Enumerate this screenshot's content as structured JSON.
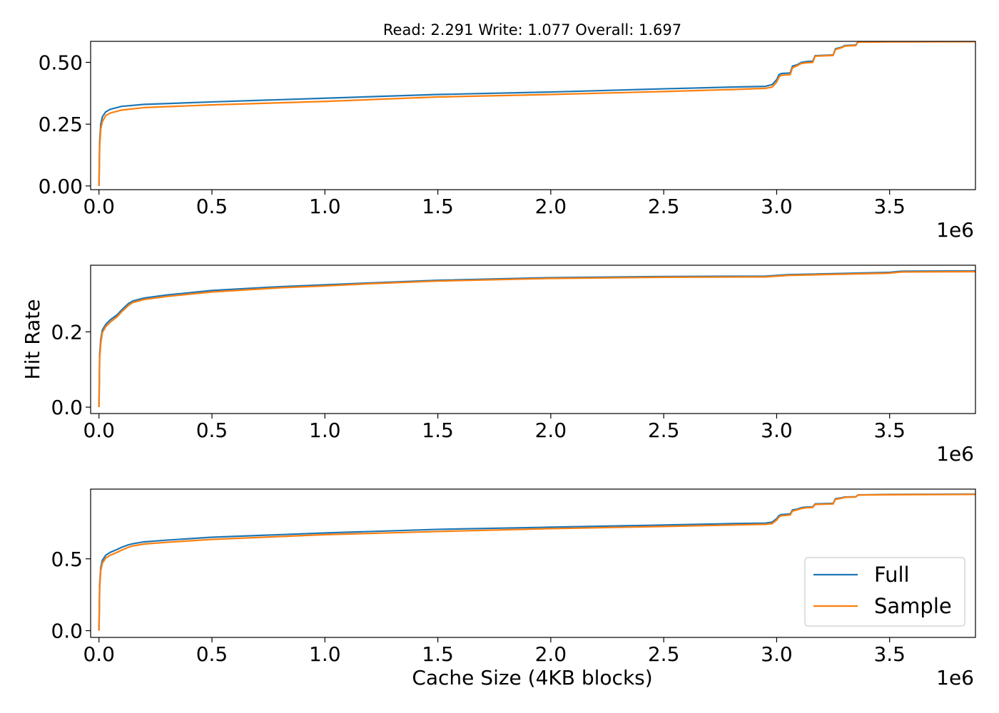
{
  "title": "Read: 2.291 Write: 1.077 Overall: 1.697",
  "ylabel": "Hit Rate",
  "xlabel": "Cache Size (4KB blocks)",
  "x_offset_label": "1e6",
  "legend": {
    "placement": "lower right",
    "items": [
      "Full",
      "Sample"
    ]
  },
  "colors": {
    "Full": "#1f77b4",
    "Sample": "#ff7f0e"
  },
  "chart_data": [
    {
      "type": "line",
      "title": "Read: 2.291 Write: 1.077 Overall: 1.697",
      "xlabel": "",
      "ylabel": "",
      "xlim": [
        -0.037,
        3.88
      ],
      "ylim": [
        -0.015,
        0.585
      ],
      "x_tick_values": [
        0,
        0.5,
        1,
        1.5,
        2,
        2.5,
        3,
        3.5
      ],
      "x_tick_labels": [
        "0.0",
        "0.5",
        "1.0",
        "1.5",
        "2.0",
        "2.5",
        "3.0",
        "3.5"
      ],
      "y_tick_values": [
        0,
        0.25,
        0.5
      ],
      "y_tick_labels": [
        "0.00",
        "0.25",
        "0.50"
      ],
      "x_offset": "1e6",
      "grid": false,
      "series": [
        {
          "name": "Full",
          "x": [
            0,
            0.003,
            0.008,
            0.015,
            0.03,
            0.05,
            0.1,
            0.2,
            0.5,
            1.0,
            1.5,
            2.0,
            2.5,
            2.8,
            2.95,
            2.98,
            3.0,
            3.01,
            3.02,
            3.06,
            3.07,
            3.09,
            3.11,
            3.13,
            3.16,
            3.17,
            3.25,
            3.26,
            3.29,
            3.3,
            3.35,
            3.36,
            3.5,
            3.88
          ],
          "y": [
            0,
            0.18,
            0.25,
            0.28,
            0.3,
            0.31,
            0.322,
            0.33,
            0.34,
            0.355,
            0.37,
            0.38,
            0.393,
            0.4,
            0.403,
            0.41,
            0.43,
            0.45,
            0.455,
            0.457,
            0.485,
            0.49,
            0.5,
            0.503,
            0.505,
            0.527,
            0.53,
            0.555,
            0.562,
            0.568,
            0.57,
            0.583,
            0.584,
            0.585
          ]
        },
        {
          "name": "Sample",
          "x": [
            0,
            0.003,
            0.008,
            0.015,
            0.03,
            0.05,
            0.1,
            0.2,
            0.5,
            1.0,
            1.5,
            2.0,
            2.5,
            2.8,
            2.95,
            2.98,
            3.0,
            3.01,
            3.02,
            3.06,
            3.07,
            3.09,
            3.11,
            3.13,
            3.16,
            3.17,
            3.25,
            3.26,
            3.29,
            3.3,
            3.35,
            3.36,
            3.5,
            3.88
          ],
          "y": [
            0,
            0.16,
            0.23,
            0.26,
            0.285,
            0.295,
            0.307,
            0.317,
            0.328,
            0.342,
            0.36,
            0.37,
            0.382,
            0.39,
            0.395,
            0.4,
            0.42,
            0.44,
            0.448,
            0.45,
            0.478,
            0.486,
            0.496,
            0.498,
            0.5,
            0.525,
            0.528,
            0.552,
            0.56,
            0.566,
            0.568,
            0.582,
            0.583,
            0.584
          ]
        }
      ]
    },
    {
      "type": "line",
      "title": "",
      "xlabel": "",
      "ylabel": "Hit Rate",
      "xlim": [
        -0.037,
        3.88
      ],
      "ylim": [
        -0.017,
        0.377
      ],
      "x_tick_values": [
        0,
        0.5,
        1,
        1.5,
        2,
        2.5,
        3,
        3.5
      ],
      "x_tick_labels": [
        "0.0",
        "0.5",
        "1.0",
        "1.5",
        "2.0",
        "2.5",
        "3.0",
        "3.5"
      ],
      "y_tick_values": [
        0,
        0.2
      ],
      "y_tick_labels": [
        "0.0",
        "0.2"
      ],
      "x_offset": "1e6",
      "grid": false,
      "series": [
        {
          "name": "Full",
          "x": [
            0,
            0.003,
            0.008,
            0.015,
            0.03,
            0.05,
            0.08,
            0.1,
            0.13,
            0.15,
            0.2,
            0.3,
            0.5,
            0.8,
            1.0,
            1.2,
            1.5,
            2.0,
            2.5,
            2.95,
            3.05,
            3.5,
            3.55,
            3.88
          ],
          "y": [
            0,
            0.14,
            0.18,
            0.205,
            0.22,
            0.232,
            0.245,
            0.258,
            0.275,
            0.282,
            0.29,
            0.298,
            0.31,
            0.32,
            0.325,
            0.33,
            0.337,
            0.344,
            0.347,
            0.348,
            0.352,
            0.358,
            0.361,
            0.362
          ]
        },
        {
          "name": "Sample",
          "x": [
            0,
            0.003,
            0.008,
            0.015,
            0.03,
            0.05,
            0.08,
            0.1,
            0.13,
            0.15,
            0.2,
            0.3,
            0.5,
            0.8,
            1.0,
            1.2,
            1.5,
            2.0,
            2.5,
            2.95,
            3.05,
            3.5,
            3.55,
            3.88
          ],
          "y": [
            0,
            0.13,
            0.17,
            0.198,
            0.214,
            0.226,
            0.24,
            0.253,
            0.27,
            0.278,
            0.286,
            0.294,
            0.306,
            0.317,
            0.322,
            0.328,
            0.335,
            0.342,
            0.345,
            0.346,
            0.35,
            0.356,
            0.359,
            0.36
          ]
        }
      ]
    },
    {
      "type": "line",
      "title": "",
      "xlabel": "Cache Size (4KB blocks)",
      "ylabel": "",
      "xlim": [
        -0.037,
        3.88
      ],
      "ylim": [
        -0.047,
        0.985
      ],
      "x_tick_values": [
        0,
        0.5,
        1,
        1.5,
        2,
        2.5,
        3,
        3.5
      ],
      "x_tick_labels": [
        "0.0",
        "0.5",
        "1.0",
        "1.5",
        "2.0",
        "2.5",
        "3.0",
        "3.5"
      ],
      "y_tick_values": [
        0,
        0.5
      ],
      "y_tick_labels": [
        "0.0",
        "0.5"
      ],
      "x_offset": "1e6",
      "grid": false,
      "series": [
        {
          "name": "Full",
          "x": [
            0,
            0.003,
            0.008,
            0.015,
            0.03,
            0.05,
            0.08,
            0.1,
            0.13,
            0.15,
            0.2,
            0.3,
            0.5,
            1.0,
            1.5,
            2.0,
            2.5,
            2.8,
            2.95,
            2.98,
            3.0,
            3.01,
            3.02,
            3.06,
            3.07,
            3.09,
            3.11,
            3.13,
            3.16,
            3.17,
            3.25,
            3.26,
            3.29,
            3.3,
            3.35,
            3.36,
            3.5,
            3.88
          ],
          "y": [
            0,
            0.32,
            0.44,
            0.49,
            0.525,
            0.545,
            0.565,
            0.58,
            0.597,
            0.605,
            0.618,
            0.63,
            0.65,
            0.68,
            0.705,
            0.72,
            0.735,
            0.745,
            0.748,
            0.755,
            0.78,
            0.8,
            0.808,
            0.812,
            0.84,
            0.845,
            0.856,
            0.86,
            0.862,
            0.882,
            0.886,
            0.918,
            0.925,
            0.93,
            0.932,
            0.945,
            0.948,
            0.95
          ]
        },
        {
          "name": "Sample",
          "x": [
            0,
            0.003,
            0.008,
            0.015,
            0.03,
            0.05,
            0.08,
            0.1,
            0.13,
            0.15,
            0.2,
            0.3,
            0.5,
            1.0,
            1.5,
            2.0,
            2.5,
            2.8,
            2.95,
            2.98,
            3.0,
            3.01,
            3.02,
            3.06,
            3.07,
            3.09,
            3.11,
            3.13,
            3.16,
            3.17,
            3.25,
            3.26,
            3.29,
            3.3,
            3.35,
            3.36,
            3.5,
            3.88
          ],
          "y": [
            0,
            0.3,
            0.42,
            0.47,
            0.505,
            0.525,
            0.545,
            0.56,
            0.58,
            0.59,
            0.603,
            0.615,
            0.635,
            0.668,
            0.69,
            0.71,
            0.725,
            0.735,
            0.74,
            0.745,
            0.77,
            0.79,
            0.8,
            0.805,
            0.832,
            0.84,
            0.85,
            0.855,
            0.858,
            0.878,
            0.882,
            0.914,
            0.922,
            0.928,
            0.93,
            0.944,
            0.946,
            0.948
          ]
        }
      ]
    }
  ]
}
